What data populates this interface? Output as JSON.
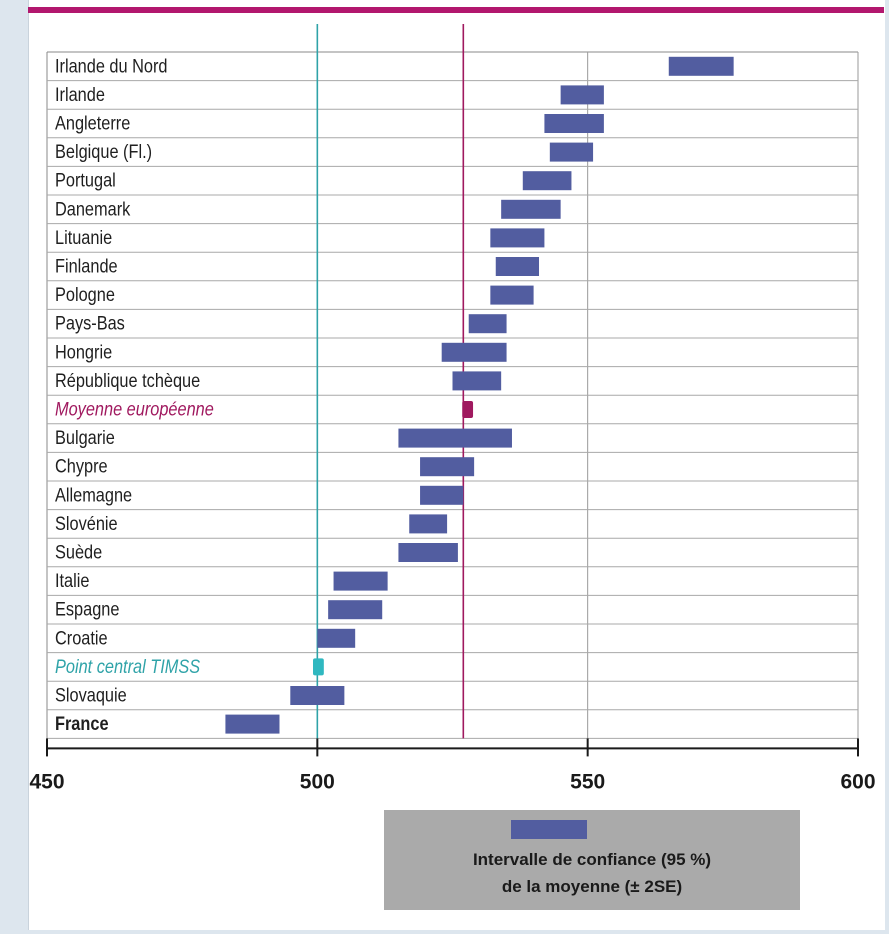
{
  "chart_data": {
    "type": "interval",
    "xlim": [
      450,
      600
    ],
    "xticks": [
      "450",
      "500",
      "550",
      "600"
    ],
    "reference_lines": [
      {
        "value": 500,
        "color": "#2fa3a8"
      },
      {
        "value": 527,
        "color": "#a0195f"
      }
    ],
    "rows": [
      {
        "label": "Irlande du Nord",
        "low": 565,
        "high": 577,
        "style": "country"
      },
      {
        "label": "Irlande",
        "low": 545,
        "high": 553,
        "style": "country"
      },
      {
        "label": "Angleterre",
        "low": 542,
        "high": 553,
        "style": "country"
      },
      {
        "label": "Belgique (Fl.)",
        "low": 543,
        "high": 551,
        "style": "country"
      },
      {
        "label": "Portugal",
        "low": 538,
        "high": 547,
        "style": "country"
      },
      {
        "label": "Danemark",
        "low": 534,
        "high": 545,
        "style": "country"
      },
      {
        "label": "Lituanie",
        "low": 532,
        "high": 542,
        "style": "country"
      },
      {
        "label": "Finlande",
        "low": 533,
        "high": 541,
        "style": "country"
      },
      {
        "label": "Pologne",
        "low": 532,
        "high": 540,
        "style": "country"
      },
      {
        "label": "Pays-Bas",
        "low": 528,
        "high": 535,
        "style": "country"
      },
      {
        "label": "Hongrie",
        "low": 523,
        "high": 535,
        "style": "country"
      },
      {
        "label": "République tchèque",
        "low": 525,
        "high": 534,
        "style": "country"
      },
      {
        "label": "Moyenne européenne",
        "low": 526.8,
        "high": 528.8,
        "style": "eu"
      },
      {
        "label": "Bulgarie",
        "low": 515,
        "high": 536,
        "style": "country"
      },
      {
        "label": "Chypre",
        "low": 519,
        "high": 529,
        "style": "country"
      },
      {
        "label": "Allemagne",
        "low": 519,
        "high": 527,
        "style": "country"
      },
      {
        "label": "Slovénie",
        "low": 517,
        "high": 524,
        "style": "country"
      },
      {
        "label": "Suède",
        "low": 515,
        "high": 526,
        "style": "country"
      },
      {
        "label": "Italie",
        "low": 503,
        "high": 513,
        "style": "country"
      },
      {
        "label": "Espagne",
        "low": 502,
        "high": 512,
        "style": "country"
      },
      {
        "label": "Croatie",
        "low": 500,
        "high": 507,
        "style": "country"
      },
      {
        "label": "Point central TIMSS",
        "low": 499.2,
        "high": 501.2,
        "style": "timss"
      },
      {
        "label": "Slovaquie",
        "low": 495,
        "high": 505,
        "style": "country"
      },
      {
        "label": "France",
        "low": 483,
        "high": 493,
        "style": "france"
      }
    ],
    "legend": {
      "line1": "Intervalle de confiance (95 %)",
      "line2": "de la moyenne (± 2SE)"
    },
    "colors": {
      "bar": "#525da0",
      "eu": "#a0195f",
      "timss": "#2fb8c0",
      "accent": "#b2176e"
    }
  }
}
